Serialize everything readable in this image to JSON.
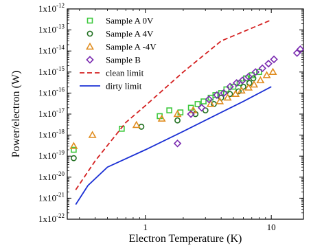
{
  "chart_data": {
    "type": "scatter",
    "title": "",
    "xlabel": "Electron Temperature (K)",
    "ylabel": "Power/electron (W)",
    "xscale": "log",
    "yscale": "log",
    "xlim": [
      0.24,
      18
    ],
    "ylim": [
      1e-22,
      1e-12
    ],
    "x_ticks": [
      {
        "value": 1,
        "label": "1"
      },
      {
        "value": 10,
        "label": "10"
      }
    ],
    "y_ticks": [
      {
        "value": 1e-12,
        "base": "1x10",
        "exp": "-12"
      },
      {
        "value": 1e-13,
        "base": "1x10",
        "exp": "-13"
      },
      {
        "value": 1e-14,
        "base": "1x10",
        "exp": "-14"
      },
      {
        "value": 1e-15,
        "base": "1x10",
        "exp": "-15"
      },
      {
        "value": 1e-16,
        "base": "1x10",
        "exp": "-16"
      },
      {
        "value": 1e-17,
        "base": "1x10",
        "exp": "-17"
      },
      {
        "value": 1e-18,
        "base": "1x10",
        "exp": "-18"
      },
      {
        "value": 1e-19,
        "base": "1x10",
        "exp": "-19"
      },
      {
        "value": 1e-20,
        "base": "1x10",
        "exp": "-20"
      },
      {
        "value": 1e-21,
        "base": "1x10",
        "exp": "-21"
      },
      {
        "value": 1e-22,
        "base": "1x10",
        "exp": "-22"
      }
    ],
    "grid": false,
    "legend_position": "top-left",
    "series": [
      {
        "name": "Sample A 0V",
        "marker": "square",
        "color": "#3cc83c",
        "x": [
          0.27,
          0.65,
          1.3,
          1.55,
          1.9,
          2.3,
          2.6,
          2.9,
          3.3,
          3.6,
          4.0,
          4.4,
          5.0,
          5.6,
          6.3,
          7.0,
          8.0
        ],
        "y": [
          2e-19,
          2e-18,
          8e-18,
          1.5e-17,
          1.2e-17,
          2e-17,
          3e-17,
          4e-17,
          6e-17,
          8e-17,
          1e-16,
          1.5e-16,
          2e-16,
          3e-16,
          5e-16,
          7e-16,
          1e-15
        ]
      },
      {
        "name": "Sample A 4V",
        "marker": "circle",
        "color": "#1f6f1f",
        "x": [
          0.27,
          0.93,
          1.8,
          2.5,
          3.0,
          3.5,
          4.0,
          4.7,
          5.5,
          6.0,
          6.7,
          7.2
        ],
        "y": [
          8e-20,
          2.5e-18,
          5e-18,
          1e-17,
          1.5e-17,
          3e-17,
          6e-17,
          9e-17,
          1.2e-16,
          2e-16,
          3e-16,
          5e-16
        ]
      },
      {
        "name": "Sample A -4V",
        "marker": "triangle",
        "color": "#e08c1e",
        "x": [
          0.27,
          0.38,
          0.85,
          1.35,
          1.8,
          2.4,
          3.3,
          3.9,
          4.5,
          5.2,
          5.8,
          6.6,
          7.3,
          8.2,
          9.2,
          10.3
        ],
        "y": [
          3e-19,
          1e-18,
          3e-18,
          6e-18,
          1e-17,
          1.5e-17,
          3e-17,
          4e-17,
          6e-17,
          9e-17,
          1.3e-16,
          1.8e-16,
          2.5e-16,
          4e-16,
          7e-16,
          1e-15
        ]
      },
      {
        "name": "Sample B",
        "marker": "diamond",
        "color": "#7a2ab0",
        "x": [
          1.8,
          2.3,
          2.8,
          3.2,
          3.7,
          4.2,
          4.7,
          5.3,
          5.9,
          6.6,
          7.5,
          8.5,
          9.5,
          10.5,
          16,
          17
        ],
        "y": [
          4e-19,
          1e-17,
          2e-17,
          5e-17,
          8e-17,
          1e-16,
          2e-16,
          3e-16,
          4e-16,
          6e-16,
          1e-15,
          1.5e-15,
          2.5e-15,
          4e-15,
          8e-15,
          1.2e-14
        ]
      },
      {
        "name": "clean limit",
        "marker": "dashed-line",
        "color": "#d42020",
        "x": [
          0.28,
          0.4,
          0.7,
          1.0,
          2.0,
          4.0,
          10.0
        ],
        "y": [
          2.5e-21,
          6e-20,
          4e-18,
          2.5e-17,
          1e-15,
          3e-14,
          3e-13
        ]
      },
      {
        "name": "dirty limit",
        "marker": "line",
        "color": "#1a2fd4",
        "x": [
          0.28,
          0.35,
          0.5,
          1.0,
          2.0,
          4.0,
          6.0,
          10.0
        ],
        "y": [
          5e-22,
          4e-21,
          3e-20,
          2e-19,
          1.5e-18,
          1.2e-17,
          4e-17,
          2e-16
        ]
      }
    ]
  }
}
